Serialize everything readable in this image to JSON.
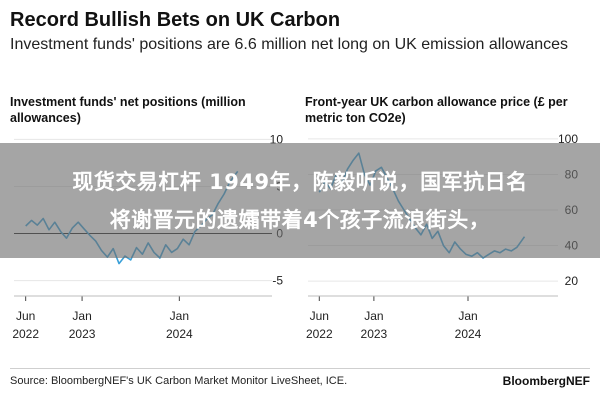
{
  "header": {
    "title": "Record Bullish Bets on UK Carbon",
    "subtitle": "Investment funds' positions are 6.6 million net long on UK emission allowances"
  },
  "overlay": {
    "line1": "现货交易杠杆 1949年，陈毅听说，国军抗日名",
    "line2": "将谢晋元的遗孀带着4个孩子流浪街头，"
  },
  "footer": {
    "source": "Source: BloombergNEF's UK Carbon Market Monitor LiveSheet, ICE.",
    "brand": "BloombergNEF"
  },
  "colors": {
    "line": "#3aa0d8",
    "zero": "#222222",
    "grid": "#e6e6e6"
  },
  "chart_data": [
    {
      "type": "line",
      "title": "Investment funds' net positions (million allowances)",
      "y_ticks": [
        10,
        5,
        0,
        -5
      ],
      "ylim": [
        -6,
        11
      ],
      "x_ticks": [
        {
          "x": 2022.42,
          "label": [
            "Jun",
            "2022"
          ]
        },
        {
          "x": 2023.0,
          "label": [
            "Jan",
            "2023"
          ]
        },
        {
          "x": 2024.0,
          "label": [
            "Jan",
            "2024"
          ]
        }
      ],
      "xlim": [
        2022.3,
        2024.85
      ],
      "zero_line": true,
      "x": [
        2022.42,
        2022.48,
        2022.54,
        2022.6,
        2022.66,
        2022.72,
        2022.78,
        2022.84,
        2022.9,
        2022.96,
        2023.02,
        2023.08,
        2023.14,
        2023.2,
        2023.26,
        2023.32,
        2023.38,
        2023.44,
        2023.5,
        2023.56,
        2023.62,
        2023.68,
        2023.74,
        2023.8,
        2023.86,
        2023.92,
        2023.98,
        2024.04,
        2024.1,
        2024.16,
        2024.22,
        2024.28,
        2024.34,
        2024.4,
        2024.46,
        2024.52,
        2024.6
      ],
      "y": [
        0.8,
        1.4,
        0.9,
        1.6,
        0.4,
        1.2,
        0.2,
        -0.5,
        0.6,
        1.2,
        0.5,
        -0.2,
        -0.8,
        -1.8,
        -2.5,
        -1.6,
        -3.2,
        -2.4,
        -2.8,
        -1.5,
        -2.2,
        -1.0,
        -2.0,
        -2.6,
        -1.2,
        -2.0,
        -1.6,
        -0.6,
        -1.2,
        0.2,
        0.8,
        1.5,
        2.0,
        3.2,
        4.2,
        5.5,
        6.6
      ]
    },
    {
      "type": "line",
      "title": "Front-year UK carbon allowance price (£ per metric ton CO2e)",
      "y_ticks": [
        100,
        80,
        60,
        40,
        20
      ],
      "ylim": [
        15,
        105
      ],
      "x_ticks": [
        {
          "x": 2022.42,
          "label": [
            "Jun",
            "2022"
          ]
        },
        {
          "x": 2023.0,
          "label": [
            "Jan",
            "2023"
          ]
        },
        {
          "x": 2024.0,
          "label": [
            "Jan",
            "2024"
          ]
        }
      ],
      "xlim": [
        2022.3,
        2024.85
      ],
      "zero_line": false,
      "x": [
        2022.42,
        2022.48,
        2022.54,
        2022.6,
        2022.66,
        2022.72,
        2022.78,
        2022.84,
        2022.9,
        2022.96,
        2023.02,
        2023.08,
        2023.14,
        2023.2,
        2023.26,
        2023.32,
        2023.38,
        2023.44,
        2023.5,
        2023.56,
        2023.62,
        2023.68,
        2023.74,
        2023.8,
        2023.86,
        2023.92,
        2023.98,
        2024.04,
        2024.1,
        2024.16,
        2024.22,
        2024.28,
        2024.34,
        2024.4,
        2024.46,
        2024.52,
        2024.6
      ],
      "y": [
        70,
        76,
        72,
        80,
        75,
        83,
        88,
        92,
        80,
        74,
        82,
        84,
        78,
        72,
        65,
        60,
        55,
        50,
        46,
        52,
        44,
        48,
        40,
        36,
        42,
        38,
        35,
        34,
        36,
        33,
        35,
        37,
        36,
        38,
        37,
        39,
        45
      ]
    }
  ]
}
